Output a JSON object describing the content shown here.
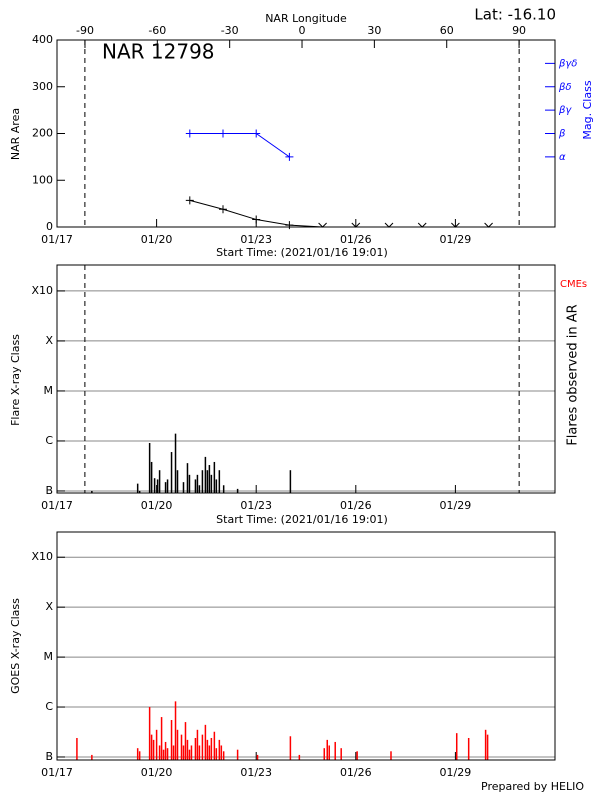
{
  "footer": "Prepared by HELIO",
  "chart_data": [
    {
      "type": "line",
      "title": "NAR 12798",
      "annotation": "Lat: -16.10",
      "x2label": "NAR Longitude",
      "xlabel": "Start Time: (2021/01/16 19:01)",
      "ylabel": "NAR Area",
      "y2label": "Mag. Class",
      "xlim": [
        0,
        15
      ],
      "xticks": [
        {
          "value": 0,
          "label": "01/17"
        },
        {
          "value": 3,
          "label": "01/20"
        },
        {
          "value": 6,
          "label": "01/23"
        },
        {
          "value": 9,
          "label": "01/26"
        },
        {
          "value": 12,
          "label": "01/29"
        }
      ],
      "x2lim": [
        -101.6,
        104.9
      ],
      "x2ticks": [
        -90,
        -60,
        -30,
        0,
        30,
        60,
        90
      ],
      "ylim": [
        0,
        400
      ],
      "yticks": [
        0,
        100,
        200,
        300,
        400
      ],
      "y2lim": [
        0,
        8
      ],
      "y2ticks": [
        {
          "value": 3,
          "label": "α"
        },
        {
          "value": 4,
          "label": "β"
        },
        {
          "value": 5,
          "label": "βγ"
        },
        {
          "value": 6,
          "label": "βδ"
        },
        {
          "value": 7,
          "label": "βγδ"
        }
      ],
      "vlines": [
        0.84,
        13.92
      ],
      "series": [
        {
          "color": "#000000",
          "x": [
            4,
            5,
            6,
            7,
            8,
            9,
            10,
            11,
            12,
            13
          ],
          "values": [
            57,
            38,
            16,
            4,
            0,
            0,
            0,
            0,
            0,
            0
          ]
        },
        {
          "color": "#0000ff",
          "axis": "y2",
          "x": [
            4,
            5,
            6,
            7
          ],
          "values": [
            4,
            4,
            4,
            3
          ]
        }
      ]
    },
    {
      "type": "bar",
      "yscale": "log",
      "grid": true,
      "xlabel": "Start Time: (2021/01/16 19:01)",
      "ylabel": "Flare X-ray Class",
      "y2label": "Flares observed in AR",
      "annotation": "CMEs",
      "xlim": [
        0,
        15
      ],
      "xticks": [
        {
          "value": 0,
          "label": "01/17"
        },
        {
          "value": 3,
          "label": "01/20"
        },
        {
          "value": 6,
          "label": "01/23"
        },
        {
          "value": 9,
          "label": "01/26"
        },
        {
          "value": 12,
          "label": "01/29"
        }
      ],
      "ylim": [
        9.1e-08,
        0.0033
      ],
      "yticks": [
        {
          "value": 1e-07,
          "label": "B"
        },
        {
          "value": 1e-06,
          "label": "C"
        },
        {
          "value": 1e-05,
          "label": "M"
        },
        {
          "value": 0.0001,
          "label": "X"
        },
        {
          "value": 0.001,
          "label": "X10"
        }
      ],
      "vlines": [
        0.84,
        13.92
      ],
      "series": [
        {
          "color": "#000000",
          "x": [
            1.05,
            2.43,
            2.49,
            2.79,
            2.85,
            2.94,
            3.03,
            3.09,
            3.27,
            3.33,
            3.45,
            3.57,
            3.63,
            3.81,
            3.93,
            3.99,
            4.17,
            4.23,
            4.29,
            4.38,
            4.47,
            4.53,
            4.59,
            4.65,
            4.74,
            4.8,
            4.89,
            5.02,
            5.44,
            7.03
          ],
          "values": [
            1e-07,
            1.4e-07,
            1e-07,
            9.1e-07,
            3.8e-07,
            1.8e-07,
            1.7e-07,
            2.6e-07,
            1.5e-07,
            1.7e-07,
            6e-07,
            1.4e-06,
            2.6e-07,
            1.5e-07,
            3.6e-07,
            2.1e-07,
            1.7e-07,
            2.1e-07,
            1.3e-07,
            2.6e-07,
            4.8e-07,
            2.6e-07,
            3.3e-07,
            2.1e-07,
            3.8e-07,
            1.7e-07,
            2.6e-07,
            1.3e-07,
            1.1e-07,
            2.6e-07
          ]
        }
      ]
    },
    {
      "type": "bar",
      "yscale": "log",
      "grid": true,
      "ylabel": "GOES X-ray Class",
      "xlim": [
        0,
        15
      ],
      "xticks": [
        {
          "value": 0,
          "label": "01/17"
        },
        {
          "value": 3,
          "label": "01/20"
        },
        {
          "value": 6,
          "label": "01/23"
        },
        {
          "value": 9,
          "label": "01/26"
        },
        {
          "value": 12,
          "label": "01/29"
        }
      ],
      "ylim": [
        8.7e-08,
        0.0032
      ],
      "yticks": [
        {
          "value": 1e-07,
          "label": "B"
        },
        {
          "value": 1e-06,
          "label": "C"
        },
        {
          "value": 1e-05,
          "label": "M"
        },
        {
          "value": 0.0001,
          "label": "X"
        },
        {
          "value": 0.001,
          "label": "X10"
        }
      ],
      "series": [
        {
          "color": "#ff0000",
          "x": [
            0.6,
            1.05,
            2.43,
            2.49,
            2.79,
            2.85,
            2.91,
            3.0,
            3.09,
            3.15,
            3.21,
            3.27,
            3.33,
            3.45,
            3.51,
            3.57,
            3.63,
            3.75,
            3.81,
            3.87,
            3.93,
            3.99,
            4.05,
            4.17,
            4.23,
            4.29,
            4.38,
            4.47,
            4.53,
            4.59,
            4.65,
            4.74,
            4.8,
            4.89,
            4.95,
            5.02,
            5.44,
            6.04,
            7.03,
            7.3,
            8.05,
            8.14,
            8.2,
            8.38,
            8.56,
            9.04,
            10.06,
            12.04,
            12.4,
            12.91,
            12.97
          ],
          "values": [
            2.4e-07,
            1.1e-07,
            1.5e-07,
            1.3e-07,
            1e-06,
            2.8e-07,
            2.2e-07,
            3.5e-07,
            1.7e-07,
            6.3e-07,
            1.4e-07,
            2e-07,
            1.5e-07,
            5.5e-07,
            1.7e-07,
            1.3e-06,
            3.5e-07,
            2.8e-07,
            1.7e-07,
            5e-07,
            2.2e-07,
            1.4e-07,
            1.7e-07,
            2.4e-07,
            3.5e-07,
            1.7e-07,
            2.8e-07,
            4.4e-07,
            2.2e-07,
            1.7e-07,
            2.4e-07,
            3.2e-07,
            1.5e-07,
            2.2e-07,
            1.7e-07,
            1.3e-07,
            1.4e-07,
            1.1e-07,
            2.6e-07,
            1.1e-07,
            1.5e-07,
            2.2e-07,
            1.7e-07,
            2e-07,
            1.5e-07,
            1.3e-07,
            1.3e-07,
            3e-07,
            2.4e-07,
            3.5e-07,
            2.8e-07
          ]
        }
      ]
    }
  ]
}
